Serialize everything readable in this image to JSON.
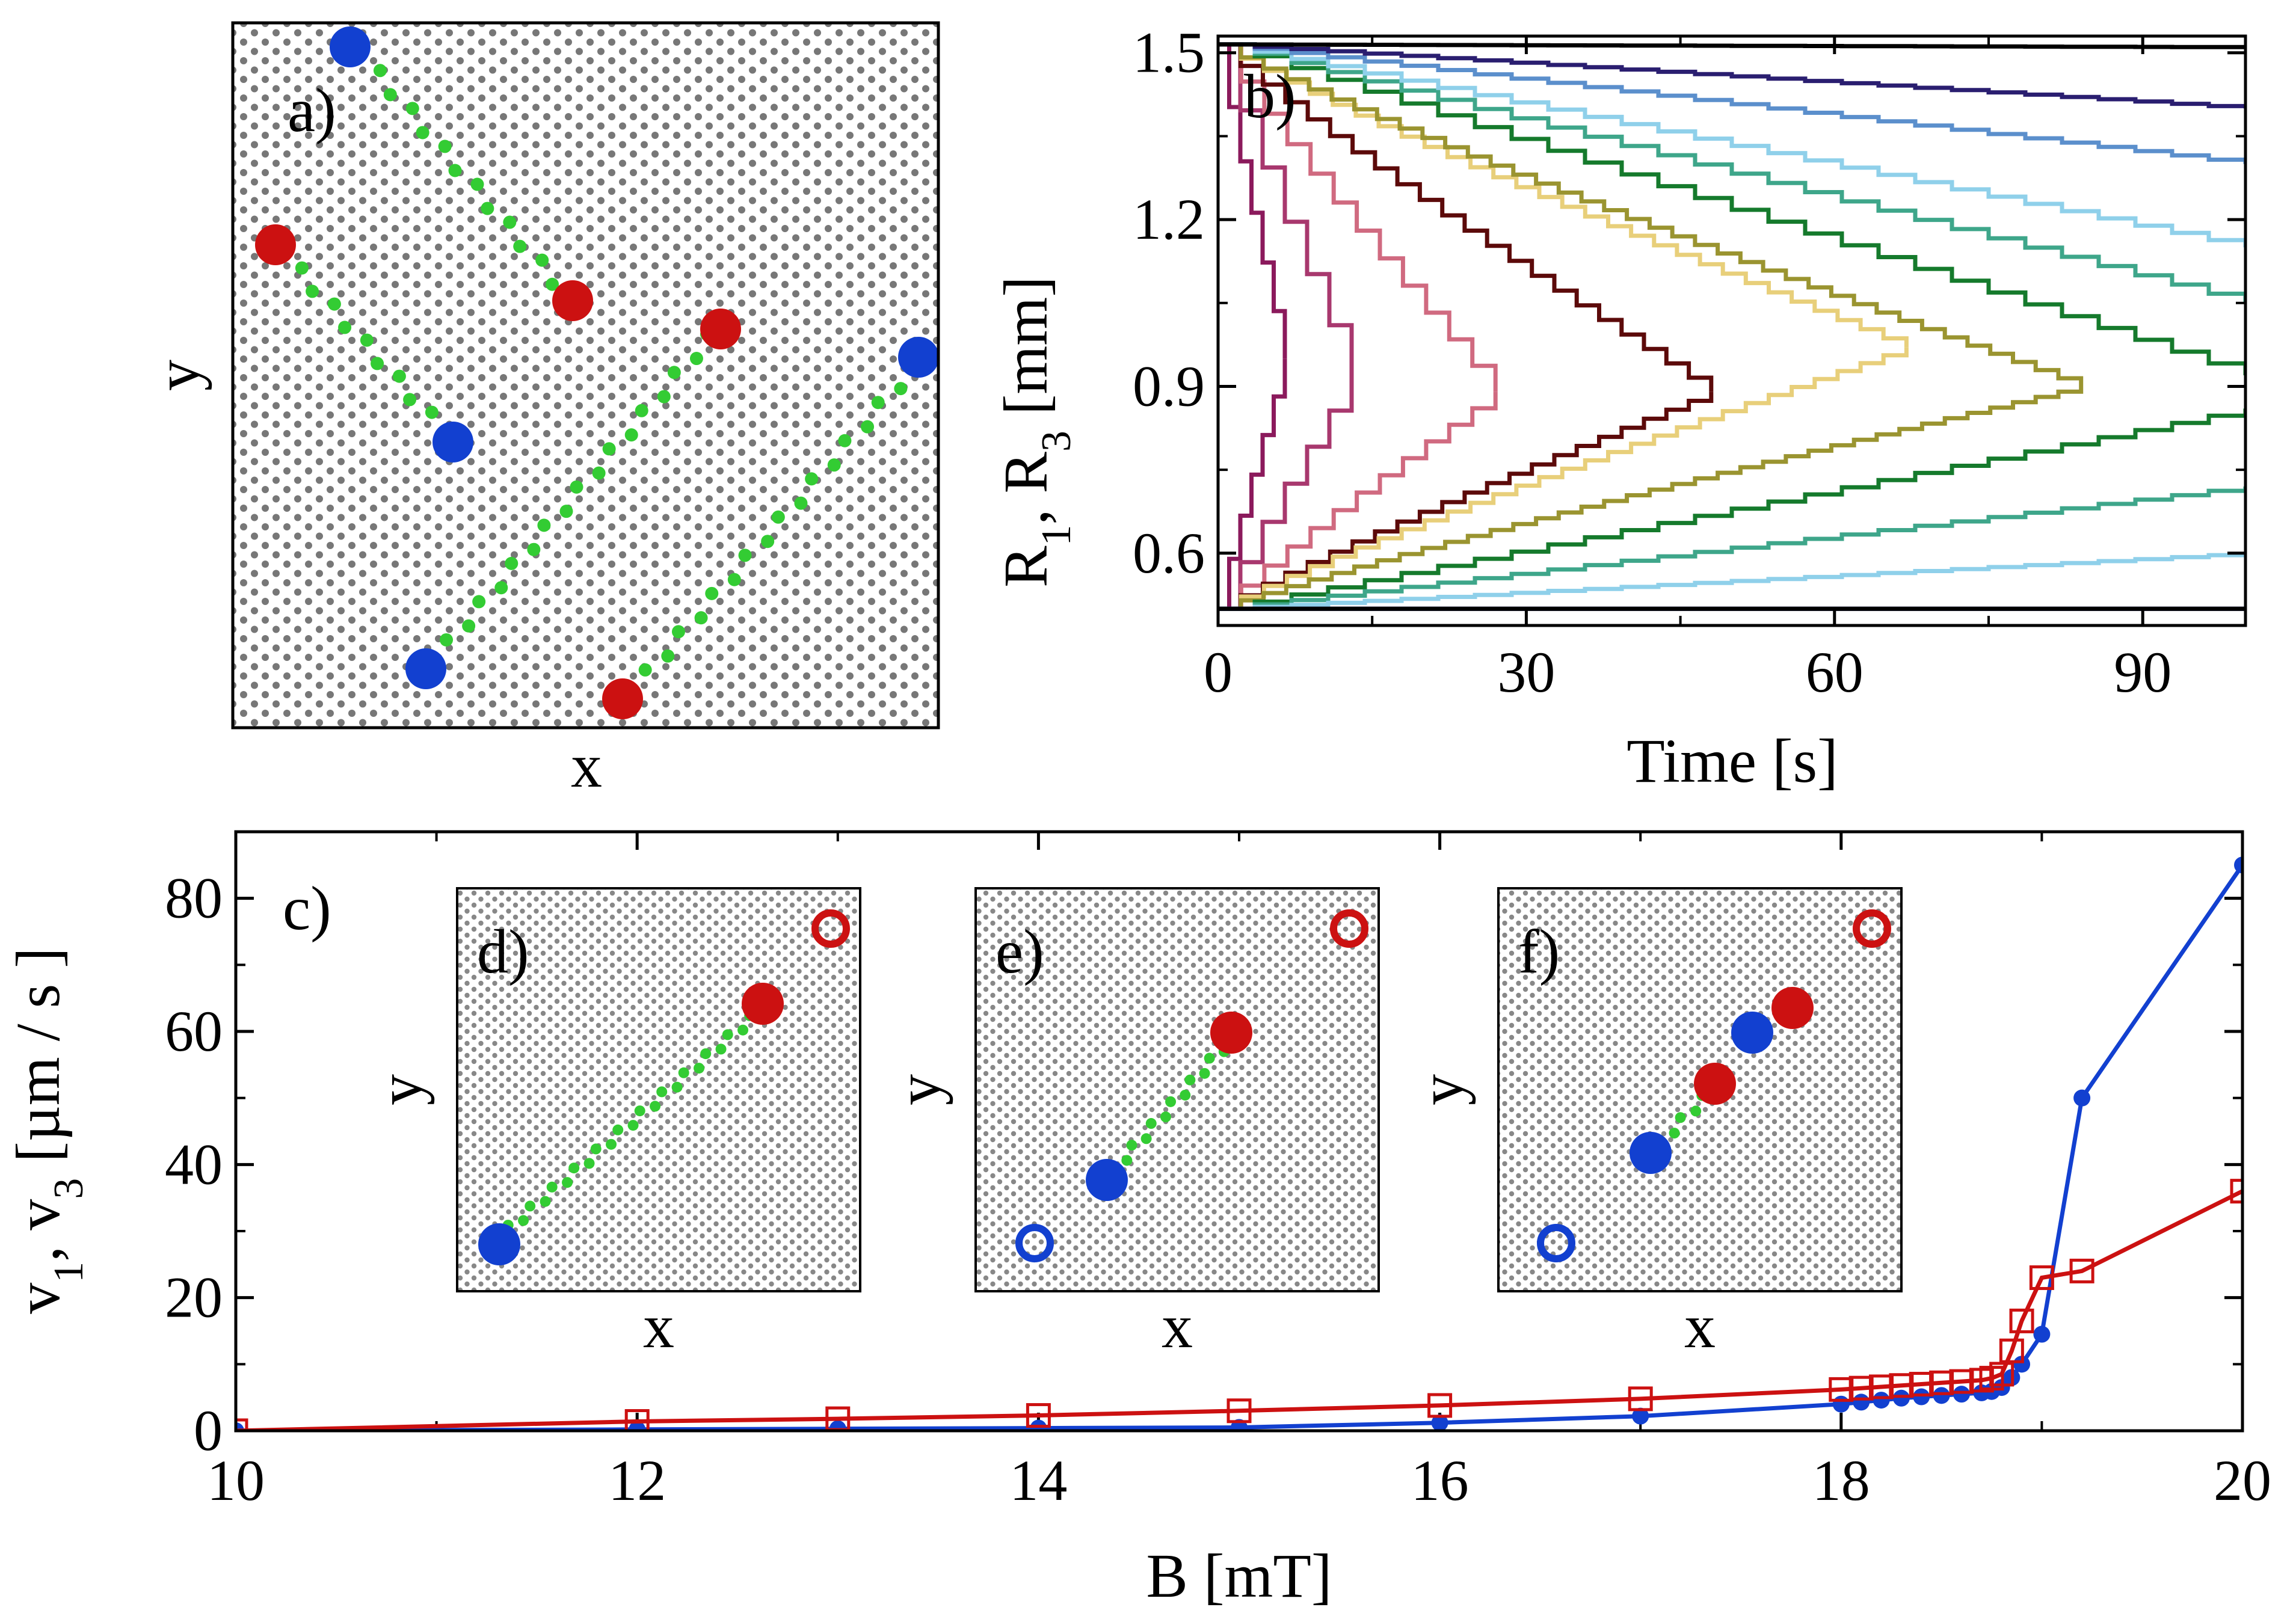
{
  "chart_data": [
    {
      "id": "a",
      "type": "scatter",
      "panel_label": "a)",
      "xlabel": "x",
      "ylabel": "y",
      "description_series": [
        {
          "name": "blue particles",
          "color": "#1240d0",
          "count": 4
        },
        {
          "name": "red particles",
          "color": "#cc1111",
          "count": 4
        },
        {
          "name": "green trail",
          "color": "#33cc33"
        }
      ]
    },
    {
      "id": "b",
      "type": "line",
      "panel_label": "b)",
      "xlabel": "Time [s]",
      "ylabel": "R₁, R₃ [mm]",
      "ylabel_parts": {
        "r": "R",
        "s1": "1",
        "sep": ", R",
        "s3": "3",
        "unit": " [mm]"
      },
      "xlim": [
        0,
        100
      ],
      "ylim": [
        0.47,
        1.53
      ],
      "xticks": [
        "0",
        "30",
        "60",
        "90"
      ],
      "xtick_values": [
        0,
        30,
        60,
        90
      ],
      "yticks": [
        "0.6",
        "0.9",
        "1.2",
        "1.5"
      ],
      "ytick_values": [
        0.6,
        0.9,
        1.2,
        1.5
      ],
      "series": [
        {
          "color": "#8b1a5c",
          "t_meet": 6.5,
          "r_meet": 0.95
        },
        {
          "color": "#a8386e",
          "t_meet": 13,
          "r_meet": 0.92
        },
        {
          "color": "#d06a80",
          "t_meet": 27,
          "r_meet": 0.89
        },
        {
          "color": "#5c0a0a",
          "t_meet": 48,
          "r_meet": 0.89
        },
        {
          "color": "#e8cf7a",
          "t_meet": 67,
          "r_meet": 0.97
        },
        {
          "color": "#9a9430",
          "t_meet": 84,
          "r_meet": 0.9
        },
        {
          "color": "#157a2c",
          "t_end": 100,
          "r_top_end": 0.92,
          "r_bot_end": 0.86
        },
        {
          "color": "#3ea68a",
          "t_end": 100,
          "r_top_end": 1.05,
          "r_bot_end": 0.72
        },
        {
          "color": "#8fd0ea",
          "t_end": 100,
          "r_top_end": 1.15,
          "r_bot_end": 0.6
        },
        {
          "color": "#5b8fcc",
          "t_end": 100,
          "r_top_end": 1.3,
          "r_bot_end": 0.5
        },
        {
          "color": "#2a1e70",
          "t_end": 100,
          "r_top_end": 1.4,
          "r_bot_end": 0.5
        },
        {
          "color": "#000000",
          "t_end": 100,
          "r_top_end": 1.51,
          "r_bot_end": 0.5
        }
      ]
    },
    {
      "id": "c",
      "type": "line",
      "panel_label": "c)",
      "xlabel": "B [mT]",
      "ylabel": "v₁, v₃ [µm / s]",
      "ylabel_parts": {
        "v": "v",
        "s1": "1",
        "sep": ", v",
        "s3": "3",
        "unit": " [µm / s ]"
      },
      "xlim": [
        10,
        20
      ],
      "ylim": [
        0,
        90
      ],
      "xticks": [
        "10",
        "12",
        "14",
        "16",
        "18",
        "20"
      ],
      "xtick_values": [
        10,
        12,
        14,
        16,
        18,
        20
      ],
      "yticks": [
        "0",
        "20",
        "40",
        "60",
        "80"
      ],
      "ytick_values": [
        0,
        20,
        40,
        60,
        80
      ],
      "series": [
        {
          "name": "v1",
          "color": "#1240d0",
          "marker": "filled-circle",
          "x": [
            10,
            12,
            13,
            14,
            15,
            16,
            17,
            18,
            18.1,
            18.2,
            18.3,
            18.4,
            18.5,
            18.6,
            18.7,
            18.75,
            18.8,
            18.85,
            18.9,
            19,
            19.2,
            20
          ],
          "y": [
            0,
            0.2,
            0.3,
            0.4,
            0.5,
            1.2,
            2.2,
            4,
            4.3,
            4.6,
            4.9,
            5.1,
            5.3,
            5.5,
            5.7,
            5.9,
            6.5,
            8,
            10,
            14.5,
            50,
            85
          ]
        },
        {
          "name": "v3",
          "color": "#cc1111",
          "marker": "open-square",
          "x": [
            10,
            12,
            13,
            14,
            15,
            16,
            17,
            18,
            18.1,
            18.2,
            18.3,
            18.4,
            18.5,
            18.6,
            18.7,
            18.75,
            18.8,
            18.85,
            18.9,
            19,
            19.2,
            20
          ],
          "y": [
            0,
            1.4,
            1.8,
            2.3,
            3,
            3.8,
            4.8,
            6.2,
            6.4,
            6.6,
            6.8,
            7,
            7.2,
            7.4,
            7.6,
            7.9,
            8.5,
            12,
            16.5,
            23,
            24,
            36
          ]
        }
      ]
    },
    {
      "id": "d",
      "type": "scatter",
      "panel_label": "d)",
      "xlabel": "x",
      "ylabel": "y"
    },
    {
      "id": "e",
      "type": "scatter",
      "panel_label": "e)",
      "xlabel": "x",
      "ylabel": "y"
    },
    {
      "id": "f",
      "type": "scatter",
      "panel_label": "f)",
      "xlabel": "x",
      "ylabel": "y"
    }
  ],
  "colors": {
    "blue": "#1240d0",
    "red": "#cc1111",
    "green": "#33cc33",
    "grey_dot": "#777777"
  }
}
